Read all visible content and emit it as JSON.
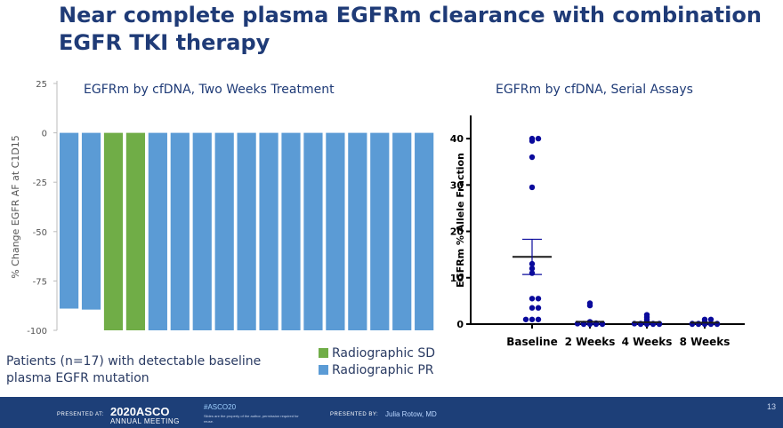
{
  "slide": {
    "title": "Near complete plasma EGFRm clearance with combination EGFR TKI therapy",
    "footnote": "Patients (n=17) with detectable baseline plasma EGFR mutation",
    "page_number": "13"
  },
  "footer": {
    "presented_at": "PRESENTED AT:",
    "meeting_year": "2020ASCO",
    "meeting_name": "ANNUAL MEETING",
    "hashtag": "#ASCO20",
    "note": "Slides are the property of the author, permission required for reuse.",
    "presented_by": "PRESENTED BY:",
    "presenter": "Julia Rotow, MD"
  },
  "colors": {
    "title": "#1f3b77",
    "pr": "#5b9bd5",
    "sd": "#70ad47",
    "dots": "#0a0a9c",
    "footer_bg": "#1d3f78"
  },
  "chart_data": [
    {
      "type": "bar",
      "subtype": "waterfall",
      "title": "EGFRm by cfDNA, Two Weeks Treatment",
      "ylabel": "% Change EGFR AF at C1D15",
      "ylim": [
        -100,
        25
      ],
      "yticks": [
        "25",
        "0",
        "-25",
        "-50",
        "-75",
        "-100"
      ],
      "values": [
        -89,
        -89.5,
        -100,
        -100,
        -100,
        -100,
        -100,
        -100,
        -100,
        -100,
        -100,
        -100,
        -100,
        -100,
        -100,
        -100,
        -100
      ],
      "response": [
        "PR",
        "PR",
        "SD",
        "SD",
        "PR",
        "PR",
        "PR",
        "PR",
        "PR",
        "PR",
        "PR",
        "PR",
        "PR",
        "PR",
        "PR",
        "PR",
        "PR"
      ],
      "legend": [
        {
          "label": "Radiographic SD",
          "color": "#70ad47"
        },
        {
          "label": "Radiographic PR",
          "color": "#5b9bd5"
        }
      ],
      "legend_position": "bottom-right"
    },
    {
      "type": "scatter",
      "title": "EGFRm by cfDNA, Serial Assays",
      "ylabel": "EGFRm % Allele Fraction",
      "ylim": [
        0,
        45
      ],
      "yticks": [
        "0",
        "10",
        "20",
        "30",
        "40"
      ],
      "categories": [
        "Baseline",
        "2 Weeks",
        "4 Weeks",
        "8 Weeks"
      ],
      "points": [
        [
          40,
          40,
          39.5,
          36,
          29.5,
          13,
          12,
          11,
          5.5,
          5.5,
          3.5,
          3.5,
          1,
          1,
          1
        ],
        [
          4.5,
          4,
          0.5,
          0.3,
          0.2,
          0.2,
          0.1,
          0.1,
          0.1,
          0.1,
          0.1,
          0,
          0,
          0,
          0
        ],
        [
          2,
          1.5,
          1,
          0.6,
          0.3,
          0.2,
          0.1,
          0.1,
          0.1,
          0.1,
          0.1,
          0,
          0,
          0,
          0
        ],
        [
          1,
          1,
          0.5,
          0.4,
          0.2,
          0.1,
          0.1,
          0.1,
          0.1,
          0.1,
          0,
          0,
          0,
          0,
          0
        ]
      ],
      "means": [
        14.5,
        0.5,
        0.4,
        0.3
      ],
      "sem": [
        3.8,
        0.3,
        0.2,
        0.1
      ]
    }
  ]
}
